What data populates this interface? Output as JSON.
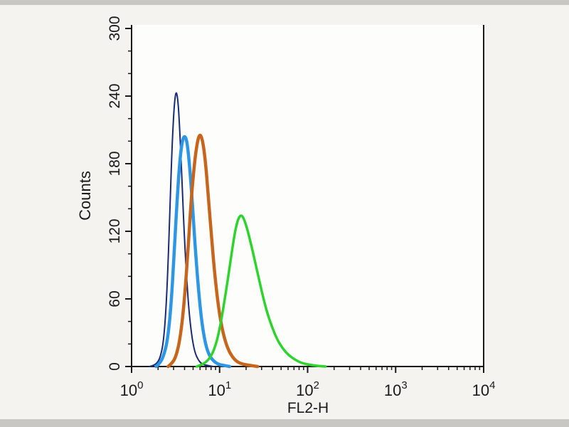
{
  "chart_data": {
    "type": "line",
    "chart_kind": "flow-cytometry-histogram",
    "title": "",
    "xlabel": "FL2-H",
    "ylabel": "Counts",
    "x_scale": "log10",
    "xlim": [
      1,
      10000
    ],
    "ylim": [
      0,
      300
    ],
    "y_ticks": [
      0,
      60,
      120,
      180,
      240,
      300
    ],
    "y_minor_step": 20,
    "x_tick_base": "10",
    "x_tick_exponents": [
      "0",
      "1",
      "2",
      "3",
      "4"
    ],
    "grid": false,
    "legend": "none",
    "axis_color": "#1a1a1a",
    "background": "#f4f3f0",
    "plot_background": "#fdfdfc",
    "border_strip_color": "#c9c7c3",
    "series": [
      {
        "name": "navy",
        "color": "#1b2a74",
        "width": 2,
        "peak_x": 3.2,
        "peak_y": 245,
        "points": [
          [
            1.6,
            0
          ],
          [
            1.8,
            1
          ],
          [
            2.0,
            4
          ],
          [
            2.15,
            10
          ],
          [
            2.3,
            22
          ],
          [
            2.45,
            48
          ],
          [
            2.6,
            92
          ],
          [
            2.75,
            150
          ],
          [
            2.9,
            200
          ],
          [
            3.05,
            232
          ],
          [
            3.2,
            245
          ],
          [
            3.35,
            238
          ],
          [
            3.5,
            215
          ],
          [
            3.7,
            175
          ],
          [
            3.9,
            130
          ],
          [
            4.15,
            88
          ],
          [
            4.45,
            52
          ],
          [
            4.8,
            28
          ],
          [
            5.2,
            13
          ],
          [
            5.7,
            6
          ],
          [
            6.3,
            2
          ],
          [
            7.2,
            1
          ],
          [
            8.5,
            0
          ]
        ]
      },
      {
        "name": "light-blue",
        "color": "#2e97e5",
        "width": 4.5,
        "peak_x": 4.0,
        "peak_y": 205,
        "points": [
          [
            1.9,
            0
          ],
          [
            2.1,
            3
          ],
          [
            2.3,
            9
          ],
          [
            2.55,
            22
          ],
          [
            2.8,
            52
          ],
          [
            3.05,
            100
          ],
          [
            3.3,
            150
          ],
          [
            3.55,
            185
          ],
          [
            3.8,
            202
          ],
          [
            4.05,
            205
          ],
          [
            4.3,
            198
          ],
          [
            4.6,
            175
          ],
          [
            4.95,
            140
          ],
          [
            5.35,
            100
          ],
          [
            5.8,
            65
          ],
          [
            6.3,
            38
          ],
          [
            6.9,
            20
          ],
          [
            7.6,
            10
          ],
          [
            8.5,
            5
          ],
          [
            9.6,
            2
          ],
          [
            11,
            1
          ],
          [
            13,
            0
          ]
        ]
      },
      {
        "name": "orange",
        "color": "#c8651d",
        "width": 4.5,
        "peak_x": 6.0,
        "peak_y": 207,
        "points": [
          [
            2.6,
            0
          ],
          [
            2.9,
            3
          ],
          [
            3.2,
            9
          ],
          [
            3.55,
            24
          ],
          [
            3.95,
            55
          ],
          [
            4.35,
            100
          ],
          [
            4.75,
            148
          ],
          [
            5.2,
            182
          ],
          [
            5.6,
            200
          ],
          [
            6.0,
            207
          ],
          [
            6.45,
            200
          ],
          [
            6.95,
            180
          ],
          [
            7.5,
            148
          ],
          [
            8.15,
            112
          ],
          [
            8.9,
            78
          ],
          [
            9.8,
            50
          ],
          [
            10.9,
            30
          ],
          [
            12.2,
            17
          ],
          [
            13.8,
            9
          ],
          [
            15.8,
            4
          ],
          [
            18.5,
            2
          ],
          [
            22,
            1
          ],
          [
            27,
            0
          ]
        ]
      },
      {
        "name": "green",
        "color": "#2ed32e",
        "width": 3.5,
        "peak_x": 17.5,
        "peak_y": 135,
        "points": [
          [
            5.5,
            0
          ],
          [
            6.5,
            2
          ],
          [
            7.5,
            6
          ],
          [
            8.5,
            13
          ],
          [
            9.5,
            25
          ],
          [
            10.5,
            42
          ],
          [
            11.8,
            66
          ],
          [
            13.2,
            92
          ],
          [
            14.6,
            115
          ],
          [
            16,
            130
          ],
          [
            17.5,
            135
          ],
          [
            19,
            131
          ],
          [
            21,
            120
          ],
          [
            23.5,
            104
          ],
          [
            26.5,
            86
          ],
          [
            30,
            67
          ],
          [
            34,
            50
          ],
          [
            39,
            36
          ],
          [
            45,
            24
          ],
          [
            52,
            16
          ],
          [
            61,
            10
          ],
          [
            72,
            6
          ],
          [
            86,
            3
          ],
          [
            105,
            1.5
          ],
          [
            130,
            0.5
          ],
          [
            160,
            0
          ]
        ]
      }
    ]
  }
}
